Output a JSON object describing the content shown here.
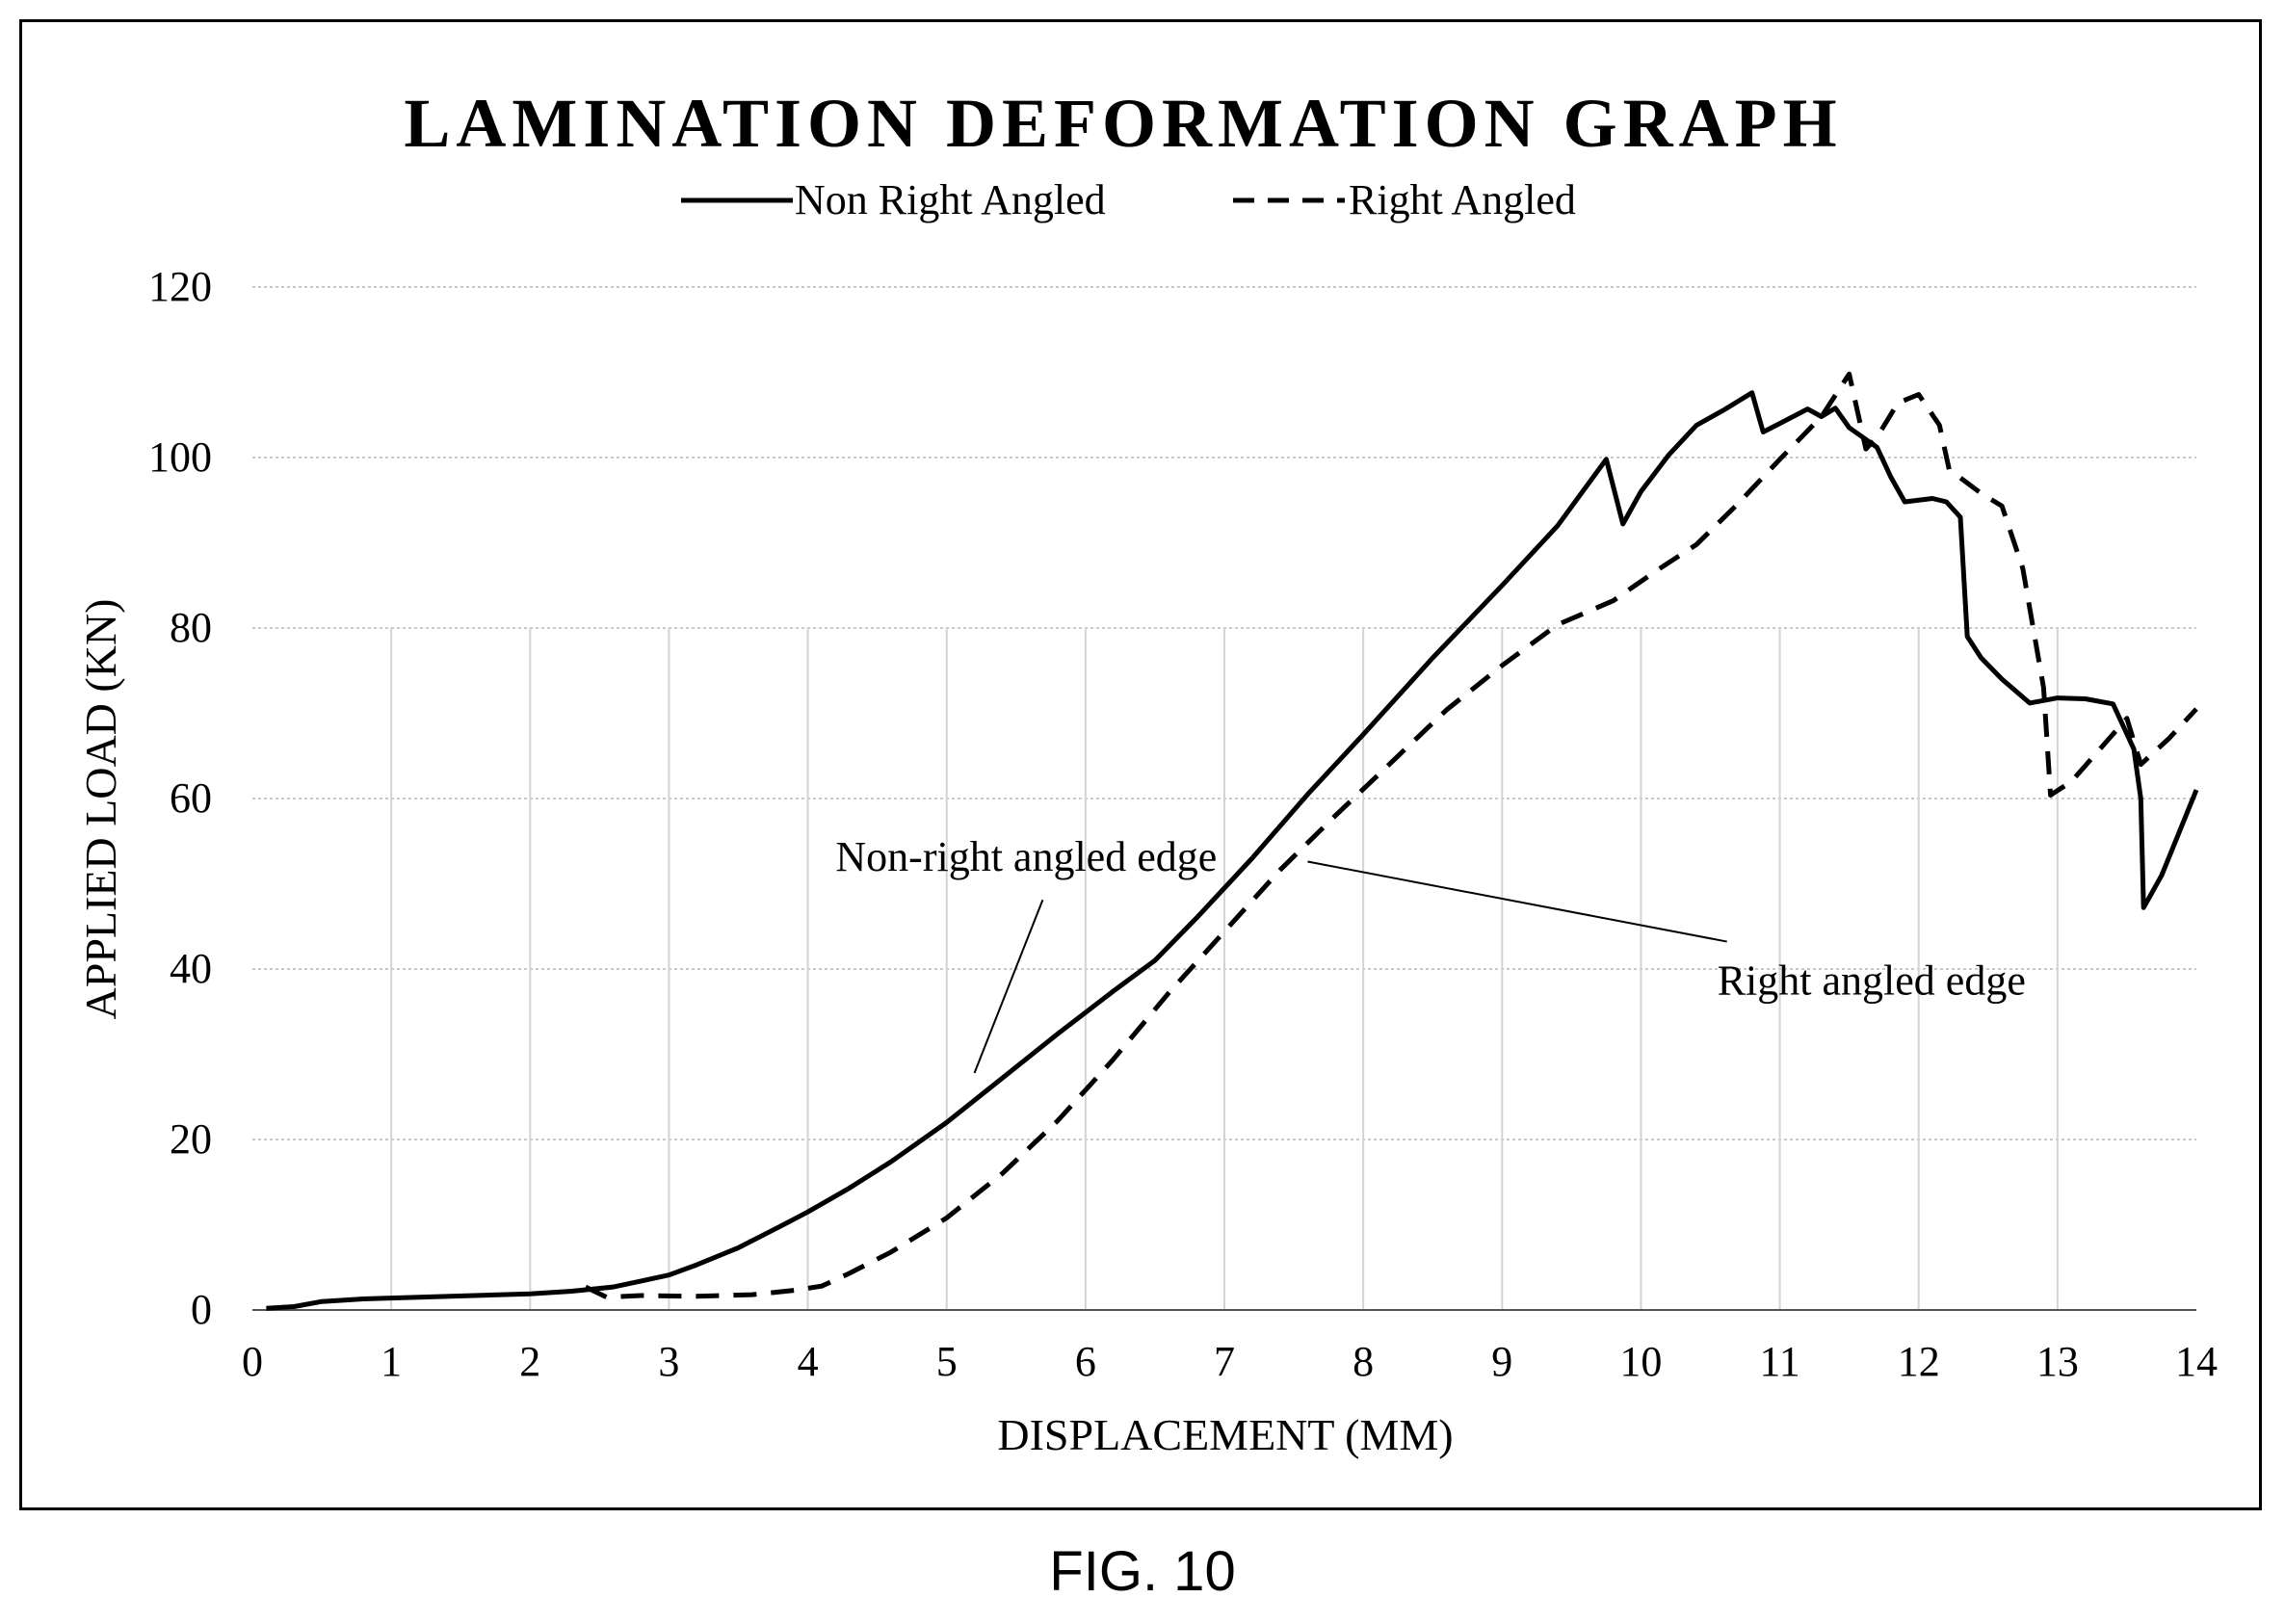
{
  "figure_label": "FIG. 10",
  "chart_data": {
    "type": "line",
    "title": "LAMINATION  DEFORMATION GRAPH",
    "xlabel": "DISPLACEMENT (MM)",
    "ylabel": "APPLIED LOAD (KN)",
    "xlim": [
      0,
      14
    ],
    "ylim": [
      0,
      120
    ],
    "xticks": [
      "0",
      "1",
      "2",
      "3",
      "4",
      "5",
      "6",
      "7",
      "8",
      "9",
      "10",
      "11",
      "12",
      "13",
      "14"
    ],
    "yticks": [
      "0",
      "20",
      "40",
      "60",
      "80",
      "100",
      "120"
    ],
    "legend_position": "top-center",
    "grid": true,
    "series": [
      {
        "name": "Non Right Angled",
        "style": "solid",
        "points": [
          [
            0.1,
            0.2
          ],
          [
            0.3,
            0.4
          ],
          [
            0.5,
            1.0
          ],
          [
            0.8,
            1.3
          ],
          [
            1.2,
            1.5
          ],
          [
            1.6,
            1.7
          ],
          [
            2.0,
            1.9
          ],
          [
            2.3,
            2.2
          ],
          [
            2.6,
            2.7
          ],
          [
            2.8,
            3.4
          ],
          [
            3.0,
            4.1
          ],
          [
            3.2,
            5.3
          ],
          [
            3.5,
            7.3
          ],
          [
            3.8,
            9.8
          ],
          [
            4.0,
            11.5
          ],
          [
            4.3,
            14.3
          ],
          [
            4.6,
            17.4
          ],
          [
            5.0,
            22.0
          ],
          [
            5.4,
            27.2
          ],
          [
            5.8,
            32.4
          ],
          [
            6.2,
            37.4
          ],
          [
            6.5,
            41.0
          ],
          [
            6.8,
            46.0
          ],
          [
            7.2,
            53.0
          ],
          [
            7.6,
            60.5
          ],
          [
            8.0,
            67.5
          ],
          [
            8.5,
            76.5
          ],
          [
            9.0,
            85.0
          ],
          [
            9.4,
            92.0
          ],
          [
            9.75,
            99.8
          ],
          [
            9.87,
            92.2
          ],
          [
            10.0,
            96.0
          ],
          [
            10.2,
            100.3
          ],
          [
            10.4,
            103.8
          ],
          [
            10.6,
            105.6
          ],
          [
            10.8,
            107.6
          ],
          [
            10.88,
            103.0
          ],
          [
            11.0,
            104.0
          ],
          [
            11.2,
            105.7
          ],
          [
            11.3,
            104.8
          ],
          [
            11.4,
            105.8
          ],
          [
            11.5,
            103.5
          ],
          [
            11.7,
            101.2
          ],
          [
            11.8,
            97.7
          ],
          [
            11.9,
            94.8
          ],
          [
            12.1,
            95.2
          ],
          [
            12.2,
            94.8
          ],
          [
            12.3,
            93.0
          ],
          [
            12.35,
            79.0
          ],
          [
            12.45,
            76.5
          ],
          [
            12.6,
            74.0
          ],
          [
            12.8,
            71.2
          ],
          [
            13.0,
            71.8
          ],
          [
            13.2,
            71.7
          ],
          [
            13.4,
            71.1
          ],
          [
            13.55,
            65.8
          ],
          [
            13.6,
            60.0
          ],
          [
            13.62,
            47.2
          ],
          [
            13.75,
            51.0
          ],
          [
            14.0,
            61.0
          ]
        ]
      },
      {
        "name": "Right Angled",
        "style": "dashed",
        "points": [
          [
            2.4,
            2.7
          ],
          [
            2.55,
            1.5
          ],
          [
            2.8,
            1.7
          ],
          [
            3.2,
            1.6
          ],
          [
            3.6,
            1.8
          ],
          [
            3.9,
            2.3
          ],
          [
            4.1,
            2.8
          ],
          [
            4.3,
            4.3
          ],
          [
            4.6,
            6.8
          ],
          [
            5.0,
            10.8
          ],
          [
            5.4,
            16.0
          ],
          [
            5.8,
            22.2
          ],
          [
            6.2,
            29.4
          ],
          [
            6.6,
            37.2
          ],
          [
            7.0,
            44.4
          ],
          [
            7.4,
            51.6
          ],
          [
            7.8,
            58.0
          ],
          [
            8.2,
            64.2
          ],
          [
            8.6,
            70.4
          ],
          [
            9.0,
            75.6
          ],
          [
            9.4,
            80.4
          ],
          [
            9.8,
            83.2
          ],
          [
            10.1,
            86.6
          ],
          [
            10.4,
            89.8
          ],
          [
            10.7,
            94.6
          ],
          [
            11.0,
            99.8
          ],
          [
            11.3,
            104.8
          ],
          [
            11.5,
            109.8
          ],
          [
            11.62,
            101.0
          ],
          [
            11.7,
            102.4
          ],
          [
            11.85,
            106.4
          ],
          [
            12.0,
            107.4
          ],
          [
            12.15,
            103.8
          ],
          [
            12.22,
            98.6
          ],
          [
            12.45,
            95.8
          ],
          [
            12.6,
            94.3
          ],
          [
            12.75,
            87.0
          ],
          [
            12.9,
            73.0
          ],
          [
            12.95,
            60.4
          ],
          [
            13.1,
            62.0
          ],
          [
            13.5,
            69.4
          ],
          [
            13.6,
            64.0
          ],
          [
            13.8,
            67.0
          ],
          [
            14.0,
            70.5
          ]
        ]
      }
    ],
    "annotations": [
      {
        "text": "Non-right angled edge",
        "x": 4.2,
        "y": 51.5,
        "target": [
          5.2,
          27.8
        ]
      },
      {
        "text": "Right angled edge",
        "x": 10.55,
        "y": 37.0,
        "target": [
          7.6,
          52.6
        ]
      }
    ]
  }
}
